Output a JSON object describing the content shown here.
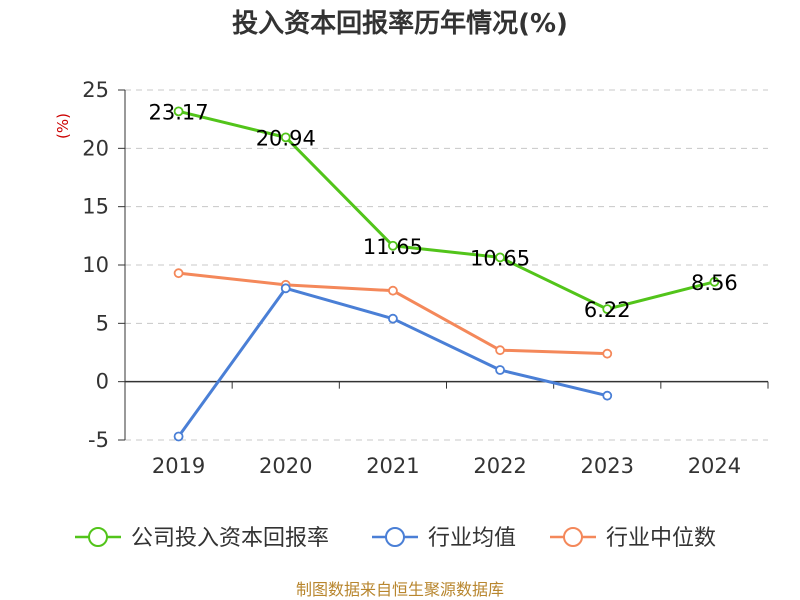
{
  "chart_data": {
    "type": "line",
    "title": "投入资本回报率历年情况(%)",
    "ylabel": "(%)",
    "xlabel": "",
    "categories": [
      "2019",
      "2020",
      "2021",
      "2022",
      "2023",
      "2024"
    ],
    "ylim": [
      -5,
      25
    ],
    "yticks": [
      25,
      20,
      15,
      10,
      5,
      0,
      -5
    ],
    "grid": true,
    "legend_position": "bottom",
    "series": [
      {
        "name": "公司投入资本回报率",
        "color": "#52c41a",
        "values": [
          23.17,
          20.94,
          11.65,
          10.65,
          6.22,
          8.56
        ],
        "labels": [
          "23.17",
          "20.94",
          "11.65",
          "10.65",
          "6.22",
          "8.56"
        ]
      },
      {
        "name": "行业均值",
        "color": "#4a7fd6",
        "values": [
          -4.7,
          8.0,
          5.4,
          1.0,
          -1.2,
          null
        ]
      },
      {
        "name": "行业中位数",
        "color": "#f4885a",
        "values": [
          9.3,
          8.3,
          7.8,
          2.7,
          2.4,
          null
        ]
      }
    ],
    "source": "制图数据来自恒生聚源数据库"
  }
}
